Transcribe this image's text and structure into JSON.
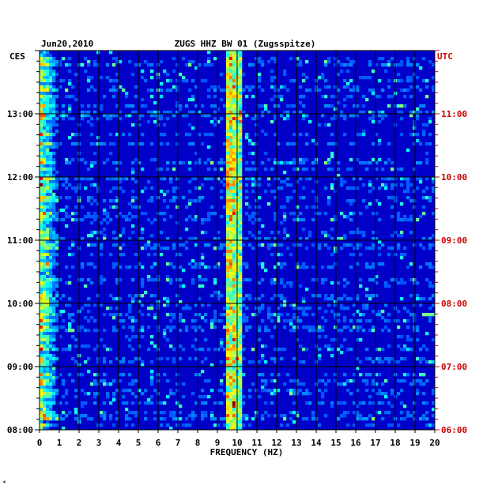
{
  "chart_data": {
    "type": "heatmap",
    "date_label": "Jun20,2010",
    "title": "ZUGS HHZ BW 01 (Zugsspitze)",
    "left_timezone": "CES",
    "right_timezone": "UTC",
    "xlabel": "FREQUENCY (HZ)",
    "xlim": [
      0,
      20
    ],
    "x_ticks": [
      "0",
      "1",
      "2",
      "3",
      "4",
      "5",
      "6",
      "7",
      "8",
      "9",
      "10",
      "11",
      "12",
      "13",
      "14",
      "15",
      "16",
      "17",
      "18",
      "19",
      "20"
    ],
    "y_ticks_left": [
      "08:00",
      "09:00",
      "10:00",
      "11:00",
      "12:00",
      "13:00"
    ],
    "y_ticks_right": [
      "06:00",
      "07:00",
      "08:00",
      "09:00",
      "10:00",
      "11:00"
    ],
    "y_range_hours_left": [
      8,
      14
    ],
    "colors": {
      "background": "#0000c8",
      "right_axis": "#cc0000",
      "grid": "#000000"
    },
    "features": [
      {
        "freq_hz": 0.4,
        "note": "strong low-frequency energy along left edge"
      },
      {
        "freq_hz": 9.7,
        "note": "recurring narrow spectral line"
      },
      {
        "freq_hz": 10.1,
        "note": "recurring narrow spectral line"
      },
      {
        "freq_hz": 15.6,
        "note": "isolated burst near 08:15"
      }
    ],
    "grid": true
  },
  "footer_mark": "*"
}
